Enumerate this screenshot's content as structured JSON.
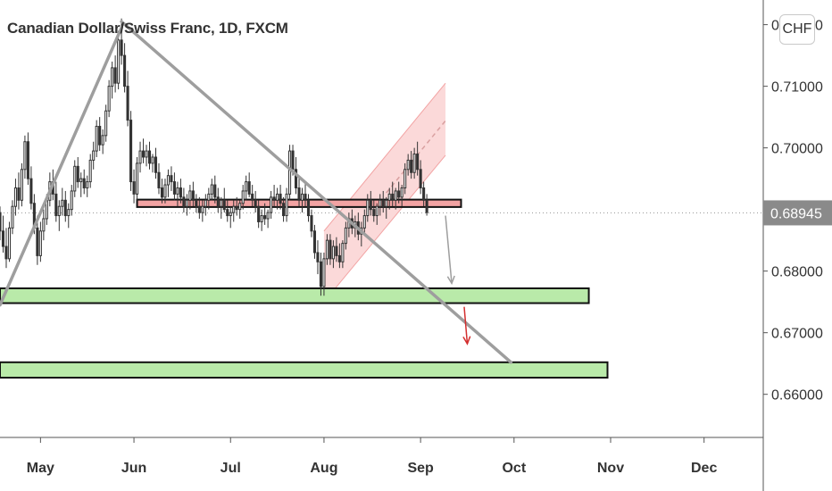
{
  "header": {
    "title": "Canadian Dollar/Swiss Franc, 1D, FXCM"
  },
  "currency_badge": "CHF",
  "colors": {
    "candle_up_fill": "#ffffff",
    "candle_down_fill": "#333333",
    "candle_outline": "#333333",
    "trendline": "#9e9e9e",
    "resistance_fill": "#f2a3a3",
    "support_fill": "#b9eaa9",
    "channel_fill": "#fbd9d9",
    "current_price_tag": "#8a8a8a",
    "down_arrow_red": "#d32f2f",
    "down_arrow_gray": "#9e9e9e"
  },
  "chart_data": {
    "type": "candlestick",
    "title": "Canadian Dollar/Swiss Franc, 1D, FXCM",
    "currency": "CHF",
    "current_price": 0.68945,
    "current_price_label": "0.68945",
    "y_ticks": [
      0.66,
      0.67,
      0.68,
      0.69,
      0.7,
      0.71,
      0.72
    ],
    "y_tick_labels": [
      "0.66000",
      "0.67000",
      "0.68000",
      "0.68945",
      "0.70000",
      "0.71000",
      "0.72000"
    ],
    "ylim": [
      0.653,
      0.724
    ],
    "x_tick_labels": [
      "May",
      "Jun",
      "Jul",
      "Aug",
      "Sep",
      "Oct",
      "Nov",
      "Dec"
    ],
    "x_ticks_day": [
      -91,
      -61,
      -30,
      0,
      31,
      61,
      92,
      122
    ],
    "xlim_day": [
      -104,
      141
    ],
    "candles": [
      [
        -104,
        0.6895,
        0.6905,
        0.685,
        0.6865
      ],
      [
        -103,
        0.6865,
        0.689,
        0.683,
        0.684
      ],
      [
        -102,
        0.684,
        0.687,
        0.6805,
        0.682
      ],
      [
        -101,
        0.682,
        0.688,
        0.6815,
        0.687
      ],
      [
        -100,
        0.687,
        0.6915,
        0.686,
        0.6905
      ],
      [
        -99,
        0.6905,
        0.695,
        0.689,
        0.6935
      ],
      [
        -98,
        0.6935,
        0.696,
        0.69,
        0.6915
      ],
      [
        -97,
        0.6915,
        0.6975,
        0.6905,
        0.6965
      ],
      [
        -96,
        0.6965,
        0.702,
        0.695,
        0.701
      ],
      [
        -95,
        0.701,
        0.7025,
        0.694,
        0.695
      ],
      [
        -94,
        0.695,
        0.697,
        0.69,
        0.691
      ],
      [
        -93,
        0.691,
        0.6925,
        0.686,
        0.687
      ],
      [
        -92,
        0.687,
        0.689,
        0.681,
        0.6825
      ],
      [
        -91,
        0.6825,
        0.688,
        0.6815,
        0.6865
      ],
      [
        -90,
        0.6865,
        0.69,
        0.685,
        0.6885
      ],
      [
        -89,
        0.6885,
        0.6925,
        0.6875,
        0.6915
      ],
      [
        -88,
        0.6915,
        0.696,
        0.6905,
        0.6945
      ],
      [
        -87,
        0.6945,
        0.6965,
        0.6915,
        0.6925
      ],
      [
        -86,
        0.6925,
        0.6945,
        0.688,
        0.689
      ],
      [
        -85,
        0.689,
        0.6915,
        0.6865,
        0.6905
      ],
      [
        -84,
        0.6905,
        0.6935,
        0.689,
        0.6915
      ],
      [
        -83,
        0.6915,
        0.693,
        0.688,
        0.689
      ],
      [
        -82,
        0.689,
        0.691,
        0.687,
        0.69
      ],
      [
        -81,
        0.69,
        0.694,
        0.689,
        0.693
      ],
      [
        -80,
        0.693,
        0.698,
        0.692,
        0.697
      ],
      [
        -79,
        0.697,
        0.6985,
        0.6935,
        0.6945
      ],
      [
        -78,
        0.6945,
        0.696,
        0.692,
        0.695
      ],
      [
        -77,
        0.695,
        0.6965,
        0.6925,
        0.6935
      ],
      [
        -76,
        0.6935,
        0.6955,
        0.692,
        0.6945
      ],
      [
        -75,
        0.6945,
        0.699,
        0.6935,
        0.698
      ],
      [
        -74,
        0.698,
        0.701,
        0.6965,
        0.6995
      ],
      [
        -73,
        0.6995,
        0.7045,
        0.6985,
        0.7035
      ],
      [
        -72,
        0.7035,
        0.705,
        0.6995,
        0.7005
      ],
      [
        -71,
        0.7005,
        0.703,
        0.699,
        0.702
      ],
      [
        -70,
        0.702,
        0.707,
        0.701,
        0.706
      ],
      [
        -69,
        0.706,
        0.711,
        0.705,
        0.71
      ],
      [
        -68,
        0.71,
        0.714,
        0.708,
        0.713
      ],
      [
        -67,
        0.713,
        0.715,
        0.709,
        0.7105
      ],
      [
        -66,
        0.7105,
        0.719,
        0.7095,
        0.7175
      ],
      [
        -65,
        0.7175,
        0.721,
        0.7135,
        0.715
      ],
      [
        -64,
        0.715,
        0.717,
        0.709,
        0.71
      ],
      [
        -63,
        0.71,
        0.7125,
        0.7035,
        0.7045
      ],
      [
        -62,
        0.7045,
        0.706,
        0.693,
        0.6945
      ],
      [
        -61,
        0.6945,
        0.6965,
        0.691,
        0.6925
      ],
      [
        -60,
        0.6925,
        0.6985,
        0.6915,
        0.6975
      ],
      [
        -59,
        0.6975,
        0.701,
        0.696,
        0.6995
      ],
      [
        -58,
        0.6995,
        0.7015,
        0.6975,
        0.6985
      ],
      [
        -57,
        0.6985,
        0.7005,
        0.697,
        0.6995
      ],
      [
        -56,
        0.6995,
        0.701,
        0.6965,
        0.6975
      ],
      [
        -55,
        0.6975,
        0.699,
        0.696,
        0.6985
      ],
      [
        -54,
        0.6985,
        0.7,
        0.695,
        0.696
      ],
      [
        -53,
        0.696,
        0.6975,
        0.6925,
        0.6935
      ],
      [
        -52,
        0.6935,
        0.695,
        0.691,
        0.692
      ],
      [
        -51,
        0.692,
        0.695,
        0.691,
        0.694
      ],
      [
        -50,
        0.694,
        0.6965,
        0.692,
        0.6955
      ],
      [
        -49,
        0.6955,
        0.697,
        0.693,
        0.6945
      ],
      [
        -48,
        0.6945,
        0.696,
        0.6915,
        0.6925
      ],
      [
        -47,
        0.6925,
        0.6945,
        0.6905,
        0.6935
      ],
      [
        -46,
        0.6935,
        0.695,
        0.691,
        0.692
      ],
      [
        -45,
        0.692,
        0.6935,
        0.6895,
        0.6905
      ],
      [
        -44,
        0.6905,
        0.6925,
        0.689,
        0.6915
      ],
      [
        -43,
        0.6915,
        0.694,
        0.69,
        0.693
      ],
      [
        -42,
        0.693,
        0.6945,
        0.6905,
        0.6915
      ],
      [
        -41,
        0.6915,
        0.6925,
        0.6895,
        0.6905
      ],
      [
        -40,
        0.6905,
        0.692,
        0.6885,
        0.6895
      ],
      [
        -39,
        0.6895,
        0.6915,
        0.688,
        0.6905
      ],
      [
        -38,
        0.6905,
        0.6925,
        0.689,
        0.6915
      ],
      [
        -37,
        0.6915,
        0.6935,
        0.69,
        0.6925
      ],
      [
        -36,
        0.6925,
        0.695,
        0.6915,
        0.694
      ],
      [
        -35,
        0.694,
        0.6955,
        0.691,
        0.692
      ],
      [
        -34,
        0.692,
        0.6935,
        0.6895,
        0.6905
      ],
      [
        -33,
        0.6905,
        0.692,
        0.6885,
        0.6915
      ],
      [
        -32,
        0.6915,
        0.6935,
        0.6895,
        0.69
      ],
      [
        -31,
        0.69,
        0.6915,
        0.688,
        0.689
      ],
      [
        -30,
        0.689,
        0.6905,
        0.687,
        0.6895
      ],
      [
        -29,
        0.6895,
        0.6915,
        0.688,
        0.6905
      ],
      [
        -28,
        0.6905,
        0.692,
        0.689,
        0.69
      ],
      [
        -27,
        0.69,
        0.6915,
        0.6885,
        0.691
      ],
      [
        -26,
        0.691,
        0.694,
        0.69,
        0.693
      ],
      [
        -25,
        0.693,
        0.6955,
        0.6915,
        0.6945
      ],
      [
        -24,
        0.6945,
        0.696,
        0.692,
        0.6925
      ],
      [
        -23,
        0.6925,
        0.694,
        0.6905,
        0.6915
      ],
      [
        -22,
        0.6915,
        0.693,
        0.6895,
        0.6905
      ],
      [
        -21,
        0.6905,
        0.6915,
        0.687,
        0.688
      ],
      [
        -20,
        0.688,
        0.69,
        0.6865,
        0.689
      ],
      [
        -19,
        0.689,
        0.691,
        0.6875,
        0.6885
      ],
      [
        -18,
        0.6885,
        0.69,
        0.687,
        0.6895
      ],
      [
        -17,
        0.6895,
        0.693,
        0.6885,
        0.692
      ],
      [
        -16,
        0.692,
        0.694,
        0.6905,
        0.6915
      ],
      [
        -15,
        0.6915,
        0.6935,
        0.69,
        0.6925
      ],
      [
        -14,
        0.6925,
        0.694,
        0.69,
        0.691
      ],
      [
        -13,
        0.691,
        0.692,
        0.688,
        0.689
      ],
      [
        -12,
        0.689,
        0.6935,
        0.688,
        0.6925
      ],
      [
        -11,
        0.6925,
        0.7005,
        0.6915,
        0.6995
      ],
      [
        -10,
        0.6995,
        0.7005,
        0.6955,
        0.6965
      ],
      [
        -9,
        0.6965,
        0.6985,
        0.6925,
        0.6935
      ],
      [
        -8,
        0.6935,
        0.6955,
        0.6905,
        0.6915
      ],
      [
        -7,
        0.6915,
        0.6935,
        0.6895,
        0.6925
      ],
      [
        -6,
        0.6925,
        0.6945,
        0.6905,
        0.6915
      ],
      [
        -5,
        0.6915,
        0.6925,
        0.688,
        0.689
      ],
      [
        -4,
        0.689,
        0.69,
        0.6855,
        0.6865
      ],
      [
        -3,
        0.6865,
        0.6875,
        0.682,
        0.683
      ],
      [
        -2,
        0.683,
        0.685,
        0.6795,
        0.6815
      ],
      [
        -1,
        0.6815,
        0.683,
        0.676,
        0.6775
      ],
      [
        0,
        0.6775,
        0.683,
        0.676,
        0.682
      ],
      [
        1,
        0.682,
        0.686,
        0.681,
        0.685
      ],
      [
        2,
        0.685,
        0.686,
        0.681,
        0.682
      ],
      [
        3,
        0.682,
        0.685,
        0.6805,
        0.684
      ],
      [
        4,
        0.684,
        0.6855,
        0.6815,
        0.6825
      ],
      [
        5,
        0.6825,
        0.6845,
        0.6805,
        0.6815
      ],
      [
        6,
        0.6815,
        0.685,
        0.6805,
        0.6845
      ],
      [
        7,
        0.6845,
        0.688,
        0.6835,
        0.687
      ],
      [
        8,
        0.687,
        0.6895,
        0.6855,
        0.6885
      ],
      [
        9,
        0.6885,
        0.69,
        0.686,
        0.687
      ],
      [
        10,
        0.687,
        0.689,
        0.6855,
        0.688
      ],
      [
        11,
        0.688,
        0.6895,
        0.685,
        0.686
      ],
      [
        12,
        0.686,
        0.688,
        0.684,
        0.687
      ],
      [
        13,
        0.687,
        0.69,
        0.686,
        0.689
      ],
      [
        14,
        0.689,
        0.6925,
        0.688,
        0.6915
      ],
      [
        15,
        0.6915,
        0.693,
        0.689,
        0.69
      ],
      [
        16,
        0.69,
        0.6915,
        0.688,
        0.689
      ],
      [
        17,
        0.689,
        0.691,
        0.6875,
        0.6905
      ],
      [
        18,
        0.6905,
        0.6925,
        0.689,
        0.6915
      ],
      [
        19,
        0.6915,
        0.693,
        0.6895,
        0.6905
      ],
      [
        20,
        0.6905,
        0.692,
        0.6885,
        0.6915
      ],
      [
        21,
        0.6915,
        0.6935,
        0.69,
        0.6925
      ],
      [
        22,
        0.6925,
        0.6945,
        0.6905,
        0.6915
      ],
      [
        23,
        0.6915,
        0.6935,
        0.69,
        0.693
      ],
      [
        24,
        0.693,
        0.6945,
        0.691,
        0.692
      ],
      [
        25,
        0.692,
        0.694,
        0.6905,
        0.6935
      ],
      [
        26,
        0.6935,
        0.6975,
        0.6925,
        0.6965
      ],
      [
        27,
        0.6965,
        0.699,
        0.6955,
        0.698
      ],
      [
        28,
        0.698,
        0.6995,
        0.695,
        0.696
      ],
      [
        29,
        0.696,
        0.7,
        0.695,
        0.699
      ],
      [
        30,
        0.699,
        0.701,
        0.6955,
        0.6965
      ],
      [
        31,
        0.6965,
        0.698,
        0.6925,
        0.6935
      ],
      [
        32,
        0.6935,
        0.6945,
        0.6905,
        0.6915
      ],
      [
        33,
        0.6915,
        0.6925,
        0.689,
        0.6895
      ]
    ],
    "annotations": {
      "resistance_zone": {
        "x0_day": -60,
        "x1_day": 44,
        "y_top": 0.6916,
        "y_bottom": 0.6904
      },
      "support_zones": [
        {
          "x0_day": -104,
          "x1_day": 85,
          "y_top": 0.6772,
          "y_bottom": 0.6748
        },
        {
          "x0_day": -104,
          "x1_day": 91,
          "y_top": 0.6652,
          "y_bottom": 0.6627
        }
      ],
      "ascending_channel": {
        "lower": [
          [
            0,
            0.675
          ],
          [
            39,
            0.6988
          ]
        ],
        "upper": [
          [
            0,
            0.6865
          ],
          [
            39,
            0.7105
          ]
        ],
        "mid_dashed_from": [
          [
            20,
            0.6927
          ],
          [
            39,
            0.7044
          ]
        ]
      },
      "trendlines": [
        {
          "from": [
            -104,
            0.6745
          ],
          "to": [
            -65,
            0.7195
          ]
        },
        {
          "from": [
            -65,
            0.7205
          ],
          "to": [
            60,
            0.6652
          ]
        }
      ],
      "projection_arrows": [
        {
          "color": "gray",
          "from": [
            39,
            0.689
          ],
          "to": [
            41,
            0.678
          ]
        },
        {
          "color": "red",
          "from": [
            45,
            0.6742
          ],
          "to": [
            46,
            0.6682
          ]
        }
      ]
    }
  }
}
